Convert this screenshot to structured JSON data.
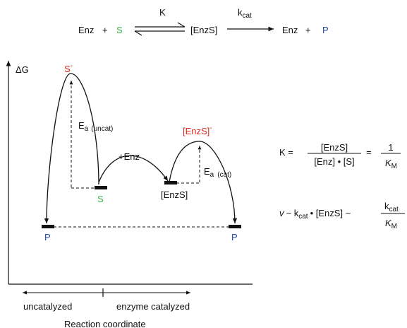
{
  "reaction": {
    "enz1": "Enz",
    "plus1": "+",
    "substrate": "S",
    "k_label": "K",
    "complex": "[EnzS]",
    "kcat_main": "k",
    "kcat_sub": "cat",
    "enz2": "Enz",
    "plus2": "+",
    "product": "P"
  },
  "axes": {
    "y_label": "ΔG",
    "x_label": "Reaction coordinate",
    "left_region": "uncatalyzed",
    "right_region": "enzyme catalyzed"
  },
  "states": {
    "ts_uncat_main": "S",
    "ts_uncat_sup": "-",
    "substrate": "S",
    "complex": "[EnzS]",
    "ts_cat_main": "[EnzS]",
    "ts_cat_sup": "-",
    "product_left": "P",
    "product_right": "P"
  },
  "annotations": {
    "ea_main": "E",
    "ea_sub": "a",
    "uncat_sub": "(uncat)",
    "cat_sub": "(cat)",
    "plus_enz": "+Enz"
  },
  "equations": {
    "eq1_lhs": "K =",
    "eq1_num": "[EnzS]",
    "eq1_den": "[Enz] • [S]",
    "eq1_eq": "=",
    "eq1_num2": "1",
    "eq1_den2_main": "K",
    "eq1_den2_sub": "M",
    "eq2_v": "v",
    "eq2_mid": "~ k",
    "eq2_cat_sub": "cat",
    "eq2_rest": "• [EnzS] ~",
    "eq2_num_main": "k",
    "eq2_num_sub": "cat",
    "eq2_den_main": "K",
    "eq2_den_sub": "M"
  },
  "colors": {
    "substrate": "#3cb44b",
    "transition_state": "#e0281e",
    "product": "#1f4aa8",
    "line": "#111111"
  }
}
